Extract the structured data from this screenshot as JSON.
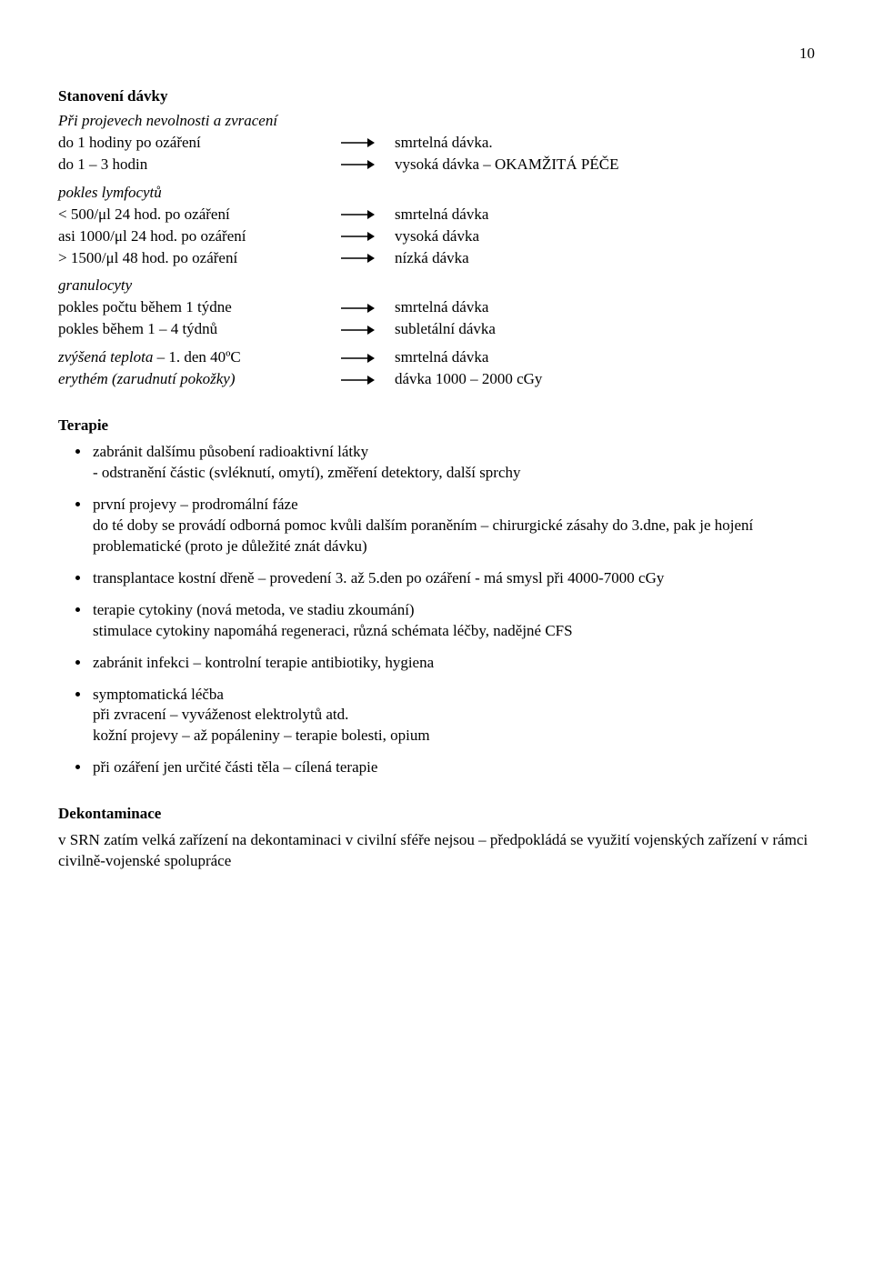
{
  "page_number": "10",
  "headings": {
    "stanoveni": "Stanovení dávky",
    "stanoveni_sub": "Při projevech nevolnosti a zvracení",
    "terapie": "Terapie",
    "dekont": "Dekontaminace"
  },
  "dose_groups": [
    {
      "intro_italic": null,
      "rows": [
        {
          "left": "do 1 hodiny po ozáření",
          "right": "smrtelná dávka."
        },
        {
          "left": "do 1 – 3 hodin",
          "right": "vysoká dávka – OKAMŽITÁ PÉČE"
        }
      ]
    },
    {
      "intro_italic": "pokles lymfocytů",
      "rows": [
        {
          "left": "<  500/μl  24 hod. po ozáření",
          "right": "smrtelná dávka"
        },
        {
          "left": "asi 1000/μl 24 hod. po ozáření",
          "right": "vysoká dávka"
        },
        {
          "left": ">  1500/μl 48 hod. po ozáření",
          "right": "nízká dávka"
        }
      ]
    },
    {
      "intro_italic": "granulocyty",
      "rows": [
        {
          "left": "pokles počtu během 1 týdne",
          "right": "smrtelná dávka"
        },
        {
          "left": "pokles během 1 – 4 týdnů",
          "right": "subletální dávka"
        }
      ]
    },
    {
      "intro_italic": null,
      "rows": [
        {
          "left_italic_part": "zvýšená teplota",
          "left_rest": " – 1. den 40ºC",
          "right": "smrtelná dávka"
        },
        {
          "left_italic_full": "erythém (zarudnutí pokožky)",
          "right": "dávka 1000 – 2000 cGy"
        }
      ]
    }
  ],
  "terapie_items": [
    {
      "lines": [
        "zabránit dalšímu působení radioaktivní látky",
        "- odstranění částic (svléknutí, omytí), změření detektory, další sprchy"
      ]
    },
    {
      "lines": [
        "první projevy – prodromální fáze",
        "do té doby se provádí odborná pomoc kvůli dalším poraněním – chirurgické zásahy do 3.dne, pak je hojení problematické (proto je důležité znát dávku)"
      ]
    },
    {
      "lines": [
        "transplantace kostní dřeně – provedení 3. až 5.den po ozáření - má smysl při 4000-7000 cGy"
      ]
    },
    {
      "lines": [
        "terapie cytokiny (nová metoda, ve stadiu zkoumání)",
        "stimulace cytokiny napomáhá regeneraci, různá schémata léčby, nadějné CFS"
      ]
    },
    {
      "lines": [
        "zabránit infekci – kontrolní terapie antibiotiky, hygiena"
      ]
    },
    {
      "lines": [
        "symptomatická léčba",
        "při zvracení – vyváženost elektrolytů atd.",
        "kožní projevy – až popáleniny – terapie bolesti, opium"
      ]
    },
    {
      "lines": [
        "při ozáření jen určité části těla – cílená terapie"
      ]
    }
  ],
  "dekont_body": "v SRN zatím velká zařízení na dekontaminaci v civilní sféře nejsou – předpokládá se využití vojenských zařízení v rámci civilně-vojenské spolupráce",
  "style": {
    "arrow_stroke": "#000000",
    "arrow_stroke_width": 1.6
  }
}
